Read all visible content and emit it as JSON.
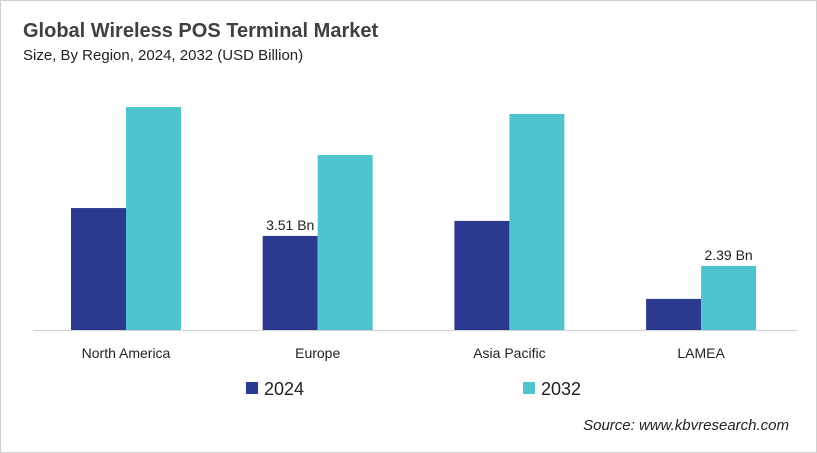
{
  "chart_data": {
    "type": "bar",
    "title": "Global Wireless POS Terminal Market",
    "subtitle": "Size, By Region, 2024, 2032 (USD Billion)",
    "categories": [
      "North America",
      "Europe",
      "Asia Pacific",
      "LAMEA"
    ],
    "series": [
      {
        "name": "2024",
        "color": "#2b3990",
        "values": [
          4.55,
          3.51,
          4.07,
          1.16
        ]
      },
      {
        "name": "2032",
        "color": "#4fc4cf",
        "values": [
          8.32,
          6.53,
          8.06,
          2.39
        ]
      }
    ],
    "data_labels": [
      {
        "series": 0,
        "category": 1,
        "text": "3.51 Bn"
      },
      {
        "series": 1,
        "category": 3,
        "text": "2.39 Bn"
      }
    ],
    "ylim": [
      0,
      9
    ],
    "grid": false,
    "legend": "bottom",
    "source": "Source: www.kbvresearch.com"
  }
}
